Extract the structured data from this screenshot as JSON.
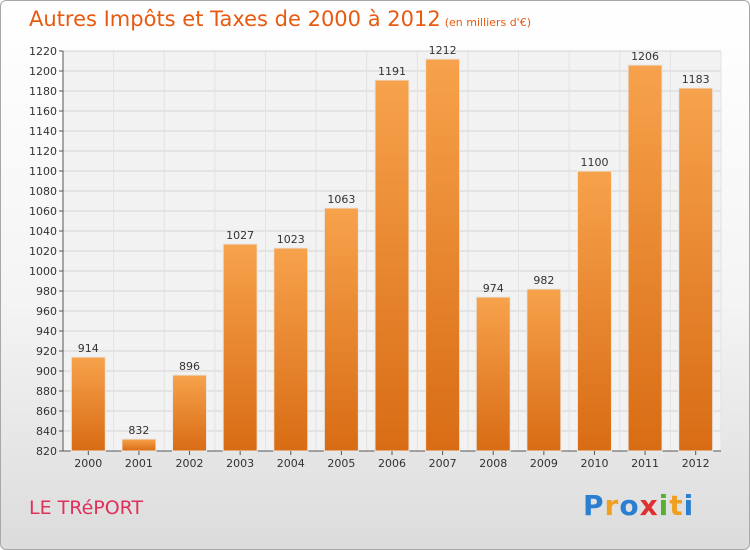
{
  "header": {
    "title": "Autres Impôts et Taxes de 2000 à 2012",
    "unit": "(en milliers d'€)"
  },
  "footer": {
    "place": "LE TRéPORT",
    "logo": "Proxiti"
  },
  "colors": {
    "bar_light": "#f7a24c",
    "bar_dark": "#d86c14",
    "title": "#e85a10",
    "place": "#e0305a"
  },
  "chart_data": {
    "type": "bar",
    "title": "Autres Impôts et Taxes de 2000 à 2012",
    "subtitle": "(en milliers d'€)",
    "xlabel": "",
    "ylabel": "",
    "categories": [
      "2000",
      "2001",
      "2002",
      "2003",
      "2004",
      "2005",
      "2006",
      "2007",
      "2008",
      "2009",
      "2010",
      "2011",
      "2012"
    ],
    "values": [
      914,
      832,
      896,
      1027,
      1023,
      1063,
      1191,
      1212,
      974,
      982,
      1100,
      1206,
      1183
    ],
    "value_labels": [
      "914",
      "832",
      "896",
      "1027",
      "1023",
      "1063",
      "1191",
      "1212",
      "974",
      "982",
      "1100",
      "1206",
      "1183"
    ],
    "ylim": [
      820,
      1220
    ],
    "yticks": [
      "820",
      "840",
      "860",
      "880",
      "900",
      "920",
      "940",
      "960",
      "980",
      "1000",
      "1020",
      "1040",
      "1060",
      "1080",
      "1100",
      "1120",
      "1140",
      "1160",
      "1180",
      "1200",
      "1220"
    ],
    "grid": true,
    "legend": "none"
  }
}
